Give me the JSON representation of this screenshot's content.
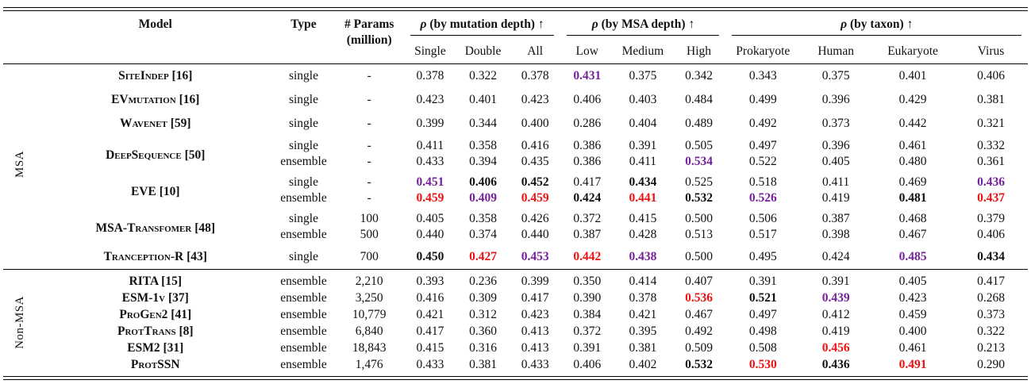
{
  "table": {
    "colors": {
      "highlight_red": "#ee1111",
      "highlight_purple": "#76219c",
      "text": "#111111",
      "rule": "#000000"
    },
    "header": {
      "model": "Model",
      "type": "Type",
      "params1": "# Params",
      "params2": "(million)",
      "groups": [
        {
          "rho": "ρ",
          "label": "(by mutation depth)",
          "arrow": "↑",
          "cols": [
            "Single",
            "Double",
            "All"
          ]
        },
        {
          "rho": "ρ",
          "label": "(by MSA depth)",
          "arrow": "↑",
          "cols": [
            "Low",
            "Medium",
            "High"
          ]
        },
        {
          "rho": "ρ",
          "label": "(by taxon)",
          "arrow": "↑",
          "cols": [
            "Prokaryote",
            "Human",
            "Eukaryote",
            "Virus"
          ]
        }
      ]
    },
    "sections": [
      {
        "label": "MSA",
        "models": [
          {
            "name": "SiteIndep [16]",
            "variants": [
              {
                "type": "single",
                "params": "-",
                "values": [
                  "0.378",
                  "0.322",
                  "0.378",
                  "0.431",
                  "0.375",
                  "0.342",
                  "0.343",
                  "0.375",
                  "0.401",
                  "0.406"
                ],
                "styles": {
                  "3": "p"
                }
              }
            ]
          },
          {
            "name": "EVmutation [16]",
            "variants": [
              {
                "type": "single",
                "params": "-",
                "values": [
                  "0.423",
                  "0.401",
                  "0.423",
                  "0.406",
                  "0.403",
                  "0.484",
                  "0.499",
                  "0.396",
                  "0.429",
                  "0.381"
                ],
                "styles": {}
              }
            ]
          },
          {
            "name": "Wavenet [59]",
            "variants": [
              {
                "type": "single",
                "params": "-",
                "values": [
                  "0.399",
                  "0.344",
                  "0.400",
                  "0.286",
                  "0.404",
                  "0.489",
                  "0.492",
                  "0.373",
                  "0.442",
                  "0.321"
                ],
                "styles": {}
              }
            ]
          },
          {
            "name": "DeepSequence [50]",
            "variants": [
              {
                "type": "single",
                "params": "-",
                "values": [
                  "0.411",
                  "0.358",
                  "0.416",
                  "0.386",
                  "0.391",
                  "0.505",
                  "0.497",
                  "0.396",
                  "0.461",
                  "0.332"
                ],
                "styles": {}
              },
              {
                "type": "ensemble",
                "params": "-",
                "values": [
                  "0.433",
                  "0.394",
                  "0.435",
                  "0.386",
                  "0.411",
                  "0.534",
                  "0.522",
                  "0.405",
                  "0.480",
                  "0.361"
                ],
                "styles": {
                  "5": "p"
                }
              }
            ]
          },
          {
            "name": "EVE [10]",
            "variants": [
              {
                "type": "single",
                "params": "-",
                "values": [
                  "0.451",
                  "0.406",
                  "0.452",
                  "0.417",
                  "0.434",
                  "0.525",
                  "0.518",
                  "0.411",
                  "0.469",
                  "0.436"
                ],
                "styles": {
                  "0": "p",
                  "1": "b",
                  "2": "b",
                  "4": "b",
                  "9": "p"
                }
              },
              {
                "type": "ensemble",
                "params": "-",
                "values": [
                  "0.459",
                  "0.409",
                  "0.459",
                  "0.424",
                  "0.441",
                  "0.532",
                  "0.526",
                  "0.419",
                  "0.481",
                  "0.437"
                ],
                "styles": {
                  "0": "r",
                  "1": "p",
                  "2": "r",
                  "3": "b",
                  "4": "r",
                  "5": "b",
                  "6": "p",
                  "8": "b",
                  "9": "r"
                }
              }
            ]
          },
          {
            "name": "MSA-Transfomer [48]",
            "variants": [
              {
                "type": "single",
                "params": "100",
                "values": [
                  "0.405",
                  "0.358",
                  "0.426",
                  "0.372",
                  "0.415",
                  "0.500",
                  "0.506",
                  "0.387",
                  "0.468",
                  "0.379"
                ],
                "styles": {}
              },
              {
                "type": "ensemble",
                "params": "500",
                "values": [
                  "0.440",
                  "0.374",
                  "0.440",
                  "0.387",
                  "0.428",
                  "0.513",
                  "0.517",
                  "0.398",
                  "0.467",
                  "0.406"
                ],
                "styles": {}
              }
            ]
          },
          {
            "name": "Tranception-R [43]",
            "variants": [
              {
                "type": "single",
                "params": "700",
                "values": [
                  "0.450",
                  "0.427",
                  "0.453",
                  "0.442",
                  "0.438",
                  "0.500",
                  "0.495",
                  "0.424",
                  "0.485",
                  "0.434"
                ],
                "styles": {
                  "0": "b",
                  "1": "r",
                  "2": "p",
                  "3": "r",
                  "4": "p",
                  "8": "p",
                  "9": "b"
                }
              }
            ]
          }
        ]
      },
      {
        "label": "Non-MSA",
        "models": [
          {
            "name": "RITA [15]",
            "variants": [
              {
                "type": "ensemble",
                "params": "2,210",
                "values": [
                  "0.393",
                  "0.236",
                  "0.399",
                  "0.350",
                  "0.414",
                  "0.407",
                  "0.391",
                  "0.391",
                  "0.405",
                  "0.417"
                ],
                "styles": {}
              }
            ]
          },
          {
            "name": "ESM-1v [37]",
            "variants": [
              {
                "type": "ensemble",
                "params": "3,250",
                "values": [
                  "0.416",
                  "0.309",
                  "0.417",
                  "0.390",
                  "0.378",
                  "0.536",
                  "0.521",
                  "0.439",
                  "0.423",
                  "0.268"
                ],
                "styles": {
                  "5": "r",
                  "6": "b",
                  "7": "p"
                }
              }
            ]
          },
          {
            "name": "ProGen2 [41]",
            "variants": [
              {
                "type": "ensemble",
                "params": "10,779",
                "values": [
                  "0.421",
                  "0.312",
                  "0.423",
                  "0.384",
                  "0.421",
                  "0.467",
                  "0.497",
                  "0.412",
                  "0.459",
                  "0.373"
                ],
                "styles": {}
              }
            ]
          },
          {
            "name": "ProtTrans [8]",
            "variants": [
              {
                "type": "ensemble",
                "params": "6,840",
                "values": [
                  "0.417",
                  "0.360",
                  "0.413",
                  "0.372",
                  "0.395",
                  "0.492",
                  "0.498",
                  "0.419",
                  "0.400",
                  "0.322"
                ],
                "styles": {}
              }
            ]
          },
          {
            "name": "ESM2 [31]",
            "variants": [
              {
                "type": "ensemble",
                "params": "18,843",
                "values": [
                  "0.415",
                  "0.316",
                  "0.413",
                  "0.391",
                  "0.381",
                  "0.509",
                  "0.508",
                  "0.456",
                  "0.461",
                  "0.213"
                ],
                "styles": {
                  "7": "r"
                }
              }
            ]
          },
          {
            "name": "ProtSSN",
            "variants": [
              {
                "type": "ensemble",
                "params": "1,476",
                "values": [
                  "0.433",
                  "0.381",
                  "0.433",
                  "0.406",
                  "0.402",
                  "0.532",
                  "0.530",
                  "0.436",
                  "0.491",
                  "0.290"
                ],
                "styles": {
                  "5": "b",
                  "6": "r",
                  "7": "b",
                  "8": "r"
                }
              }
            ]
          }
        ]
      }
    ]
  }
}
